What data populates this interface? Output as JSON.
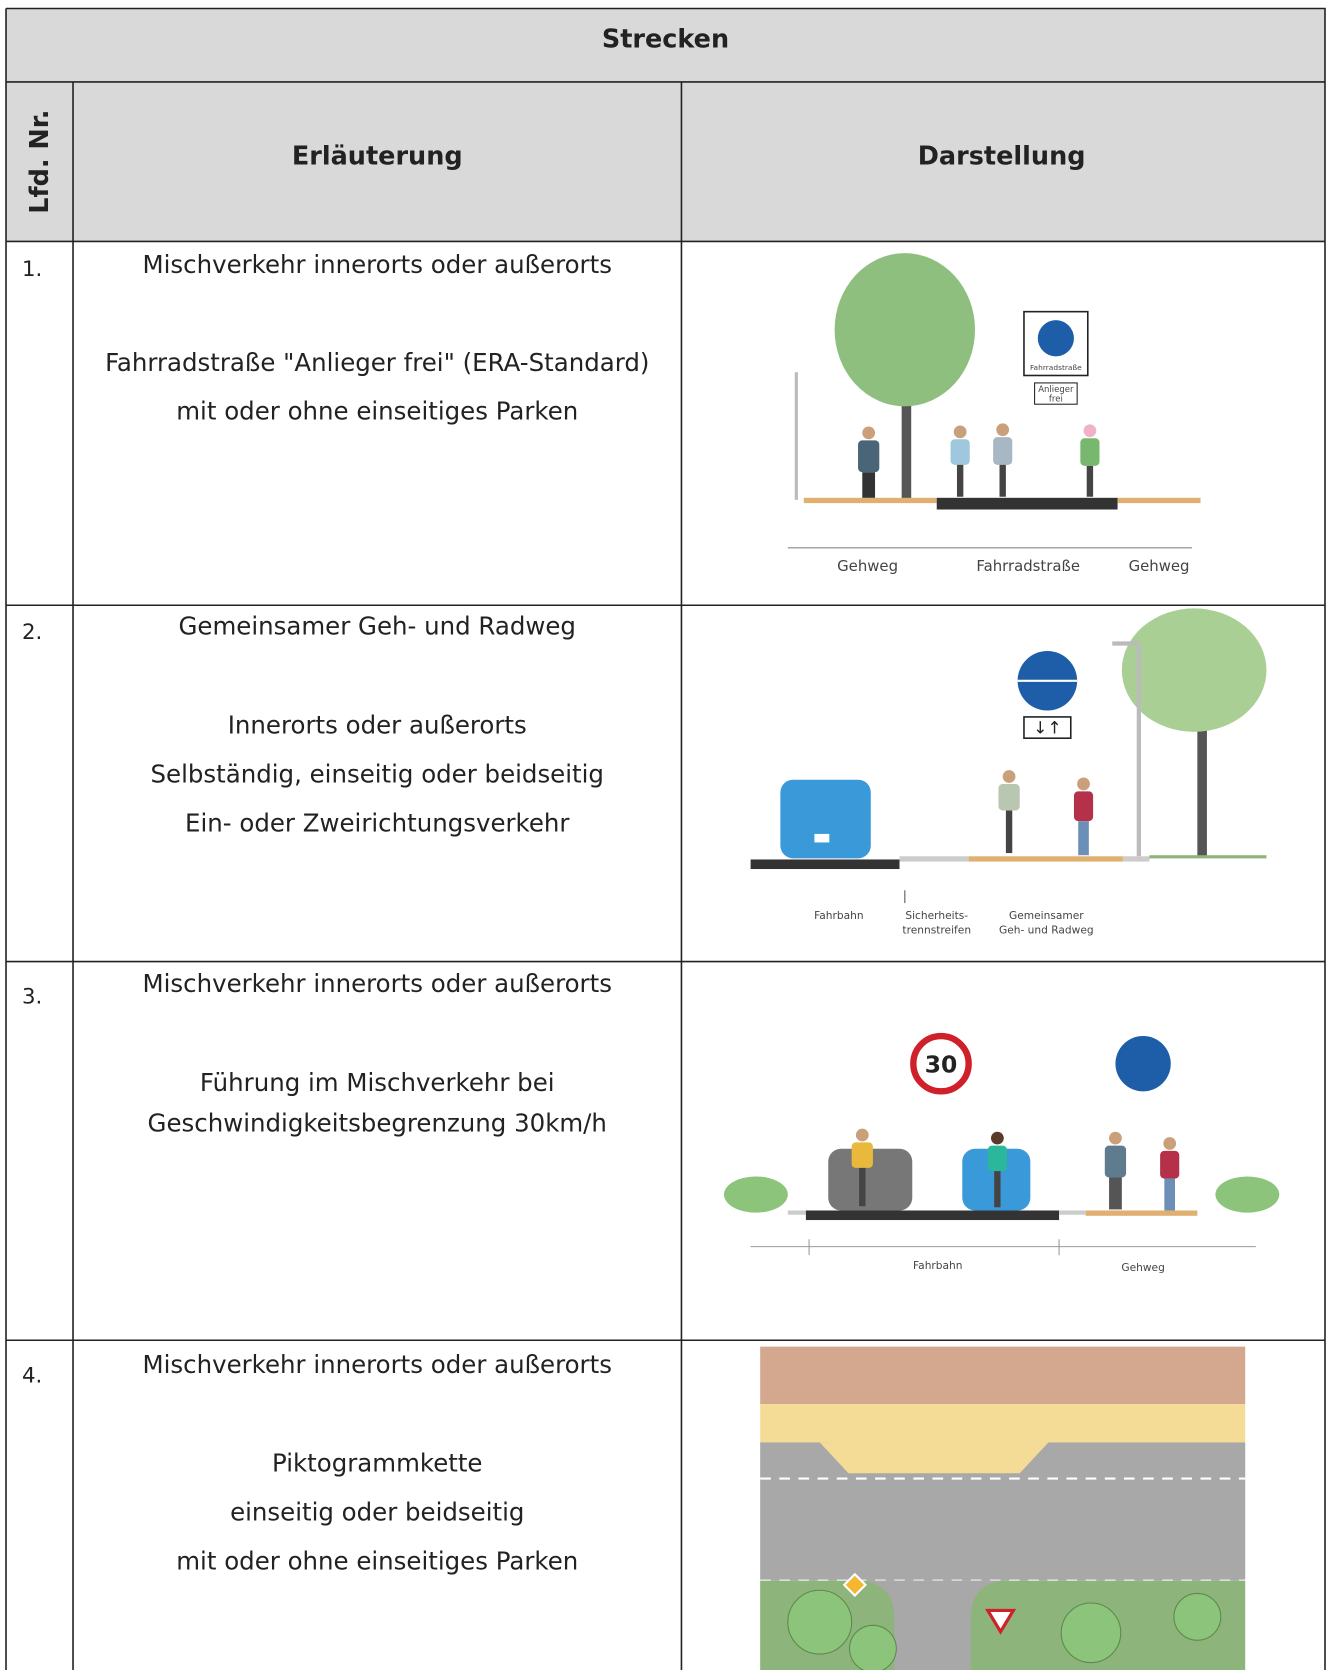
{
  "header": {
    "title": "Strecken"
  },
  "table": {
    "columns": [
      "Lfd. Nr.",
      "Erläuterung",
      "Darstellung"
    ],
    "rows": [
      {
        "number": "1.",
        "title": "Mischverkehr innerorts oder außerorts",
        "details": [
          "Fahrradstraße \"Anlieger frei\" (ERA-Standard)",
          "mit oder ohne einseitiges Parken"
        ],
        "figure": {
          "sign_labels": [
            "Fahrradstraße",
            "Anlieger",
            "frei"
          ],
          "labels": [
            "Gehweg",
            "Fahrradstraße",
            "Gehweg"
          ]
        }
      },
      {
        "number": "2.",
        "title": "Gemeinsamer Geh- und Radweg",
        "details": [
          "Innerorts oder außerorts",
          "Selbständig, einseitig oder beidseitig",
          "Ein- oder Zweirichtungsverkehr"
        ],
        "figure": {
          "sign_labels": [
            "↓↑"
          ],
          "labels": [
            "Fahrbahn",
            "Sicherheits-",
            "trennstreifen",
            "Gemeinsamer",
            "Geh- und Radweg"
          ]
        }
      },
      {
        "number": "3.",
        "title": "Mischverkehr innerorts oder außerorts",
        "details": [
          "Führung im Mischverkehr bei",
          "Geschwindigkeitsbegrenzung 30km/h"
        ],
        "figure": {
          "sign_labels": [
            "30"
          ],
          "labels": [
            "Fahrbahn",
            "Gehweg"
          ]
        }
      },
      {
        "number": "4.",
        "title": "Mischverkehr innerorts oder außerorts",
        "details": [
          "Piktogrammkette",
          "einseitig oder beidseitig",
          "mit oder ohne einseitiges Parken"
        ]
      }
    ]
  }
}
